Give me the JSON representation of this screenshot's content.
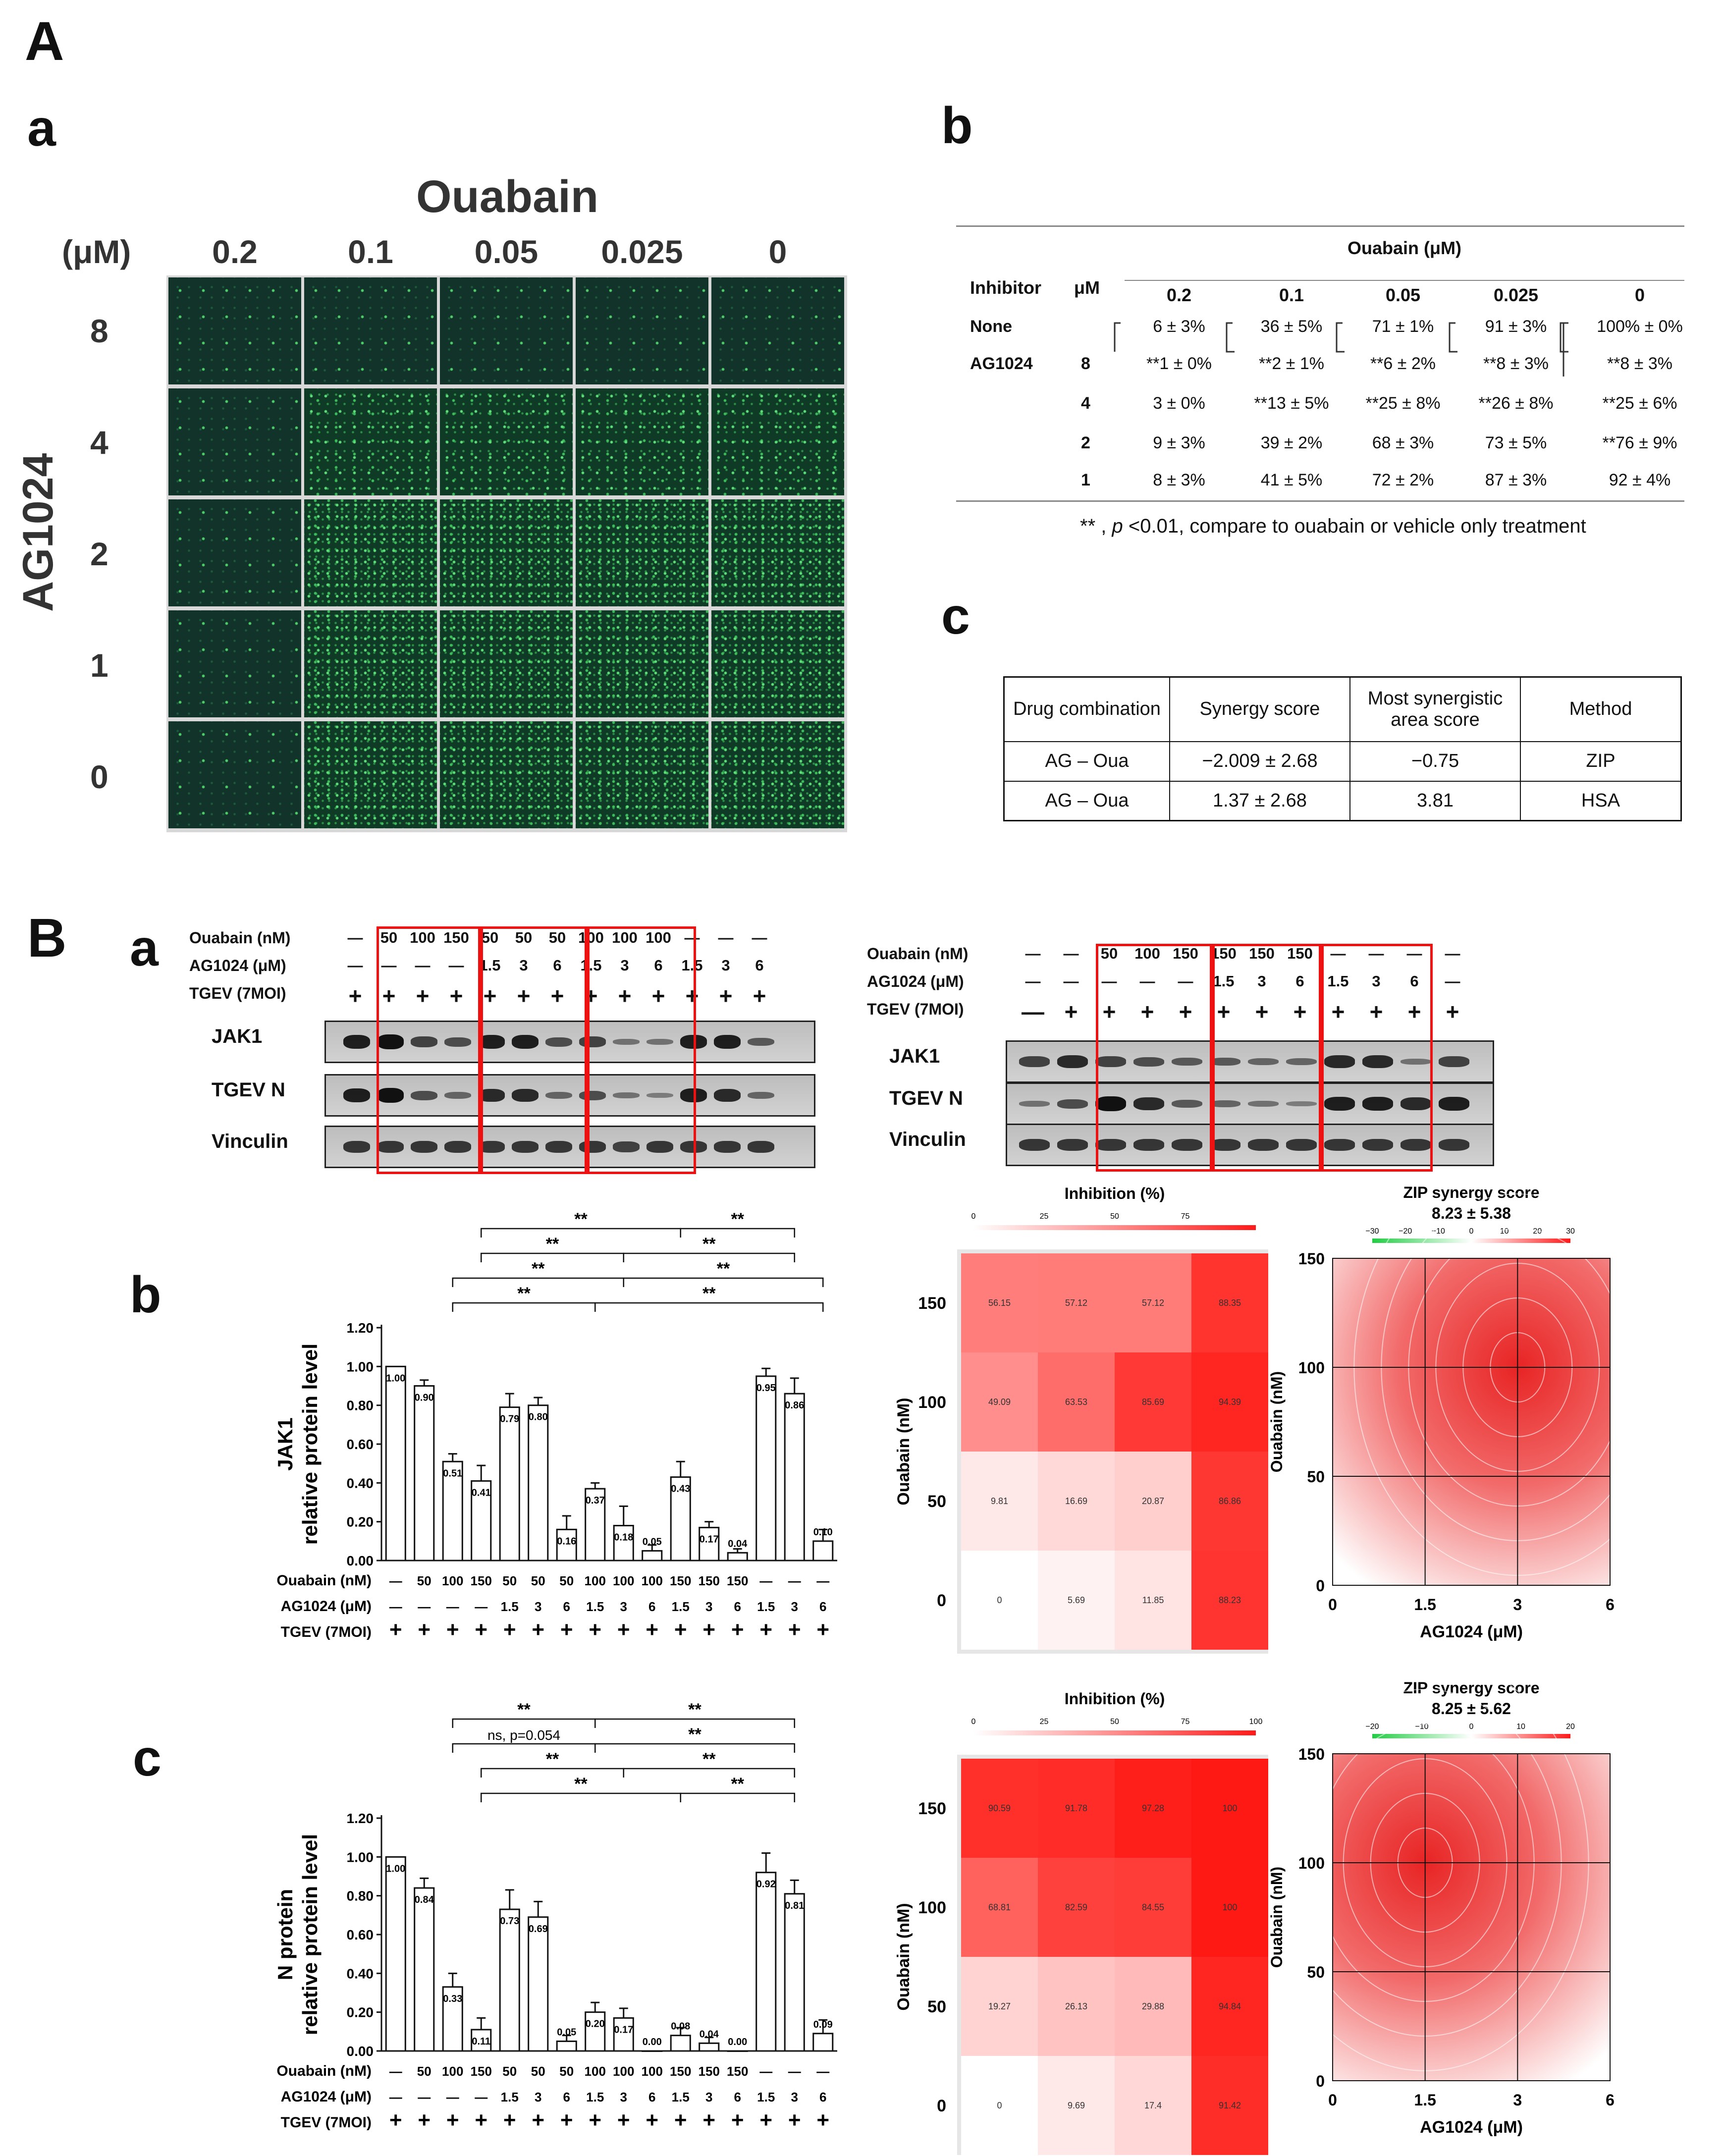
{
  "panels": {
    "A": "A",
    "A_a": "a",
    "A_b": "b",
    "A_c": "c",
    "B": "B",
    "B_a": "a",
    "B_b": "b",
    "B_c": "c"
  },
  "micrograph": {
    "title": "Ouabain",
    "unit": "(μM)",
    "ouabain_cols": [
      "0.2",
      "0.1",
      "0.05",
      "0.025",
      "0"
    ],
    "ag_label": "AG1024",
    "ag_rows": [
      "8",
      "4",
      "2",
      "1",
      "0"
    ]
  },
  "table_b": {
    "group_header": "Ouabain (μM)",
    "col_inhibitor": "Inhibitor",
    "col_um": "μM",
    "cols": [
      "0.2",
      "0.1",
      "0.05",
      "0.025",
      "0"
    ],
    "rows": [
      {
        "name": "None",
        "um": "",
        "vals": [
          "6 ± 3%",
          "36 ± 5%",
          "71 ± 1%",
          "91 ± 3%",
          "100% ± 0%"
        ]
      },
      {
        "name": "AG1024",
        "um": "8",
        "vals": [
          "**1 ± 0%",
          "**2 ± 1%",
          "**6 ± 2%",
          "**8 ± 3%",
          "**8 ± 3%"
        ]
      },
      {
        "name": "",
        "um": "4",
        "vals": [
          "3 ± 0%",
          "**13 ± 5%",
          "**25 ± 8%",
          "**26 ± 8%",
          "**25 ± 6%"
        ]
      },
      {
        "name": "",
        "um": "2",
        "vals": [
          "9 ± 3%",
          "39 ± 2%",
          "68 ± 3%",
          "73 ± 5%",
          "**76 ± 9%"
        ]
      },
      {
        "name": "",
        "um": "1",
        "vals": [
          "8 ± 3%",
          "41 ± 5%",
          "72 ± 2%",
          "87 ± 3%",
          "92 ± 4%"
        ]
      }
    ],
    "footnote_stars": "** ,",
    "footnote_p": "p",
    "footnote_rest": "<0.01, compare to ouabain or vehicle only treatment"
  },
  "table_c": {
    "headers": [
      "Drug combination",
      "Synergy score",
      "Most synergistic area score",
      "Method"
    ],
    "rows": [
      [
        "AG – Oua",
        "−2.009 ± 2.68",
        "−0.75",
        "ZIP"
      ],
      [
        "AG – Oua",
        "1.37 ± 2.68",
        "3.81",
        "HSA"
      ]
    ]
  },
  "blot_left": {
    "row_labels": [
      "Ouabain (nM)",
      "AG1024 (μM)",
      "TGEV (7MOI)"
    ],
    "ouabain": [
      "—",
      "50",
      "100",
      "150",
      "50",
      "50",
      "50",
      "100",
      "100",
      "100",
      "—",
      "—",
      "—"
    ],
    "ag1024": [
      "—",
      "—",
      "—",
      "—",
      "1.5",
      "3",
      "6",
      "1.5",
      "3",
      "6",
      "1.5",
      "3",
      "6"
    ],
    "tgev": [
      "+",
      "+",
      "+",
      "+",
      "+",
      "+",
      "+",
      "+",
      "+",
      "+",
      "+",
      "+",
      "+"
    ],
    "bands": [
      "JAK1",
      "TGEV N",
      "Vinculin"
    ]
  },
  "blot_right": {
    "row_labels": [
      "Ouabain (nM)",
      "AG1024 (μM)",
      "TGEV (7MOI)"
    ],
    "ouabain": [
      "—",
      "—",
      "50",
      "100",
      "150",
      "150",
      "150",
      "150",
      "—",
      "—",
      "—",
      "—"
    ],
    "ag1024": [
      "—",
      "—",
      "—",
      "—",
      "—",
      "1.5",
      "3",
      "6",
      "1.5",
      "3",
      "6",
      "—"
    ],
    "tgev": [
      "—",
      "+",
      "+",
      "+",
      "+",
      "+",
      "+",
      "+",
      "+",
      "+",
      "+",
      "+"
    ],
    "bands": [
      "JAK1",
      "TGEV N",
      "Vinculin"
    ]
  },
  "bar_x_rows": {
    "labels": [
      "Ouabain (nM)",
      "AG1024 (μM)",
      "TGEV (7MOI)"
    ],
    "ouabain": [
      "—",
      "50",
      "100",
      "150",
      "50",
      "50",
      "50",
      "100",
      "100",
      "100",
      "150",
      "150",
      "150",
      "—",
      "—",
      "—"
    ],
    "ag1024": [
      "—",
      "—",
      "—",
      "—",
      "1.5",
      "3",
      "6",
      "1.5",
      "3",
      "6",
      "1.5",
      "3",
      "6",
      "1.5",
      "3",
      "6"
    ],
    "tgev": [
      "+",
      "+",
      "+",
      "+",
      "+",
      "+",
      "+",
      "+",
      "+",
      "+",
      "+",
      "+",
      "+",
      "+",
      "+",
      "+"
    ]
  },
  "colors": {
    "bar_fill": "#ffffff",
    "box_red": "#e11111",
    "heat_max": "#ff1a1a",
    "heat_min": "#ffffff",
    "green_low": "#22cc44"
  },
  "chart_data": [
    {
      "type": "bar",
      "name": "JAK1",
      "ylabel_line1": "JAK1",
      "ylabel_line2": "relative protein level",
      "ylim": [
        0,
        1.2
      ],
      "yticks": [
        "0.00",
        "0.20",
        "0.40",
        "0.60",
        "0.80",
        "1.00",
        "1.20"
      ],
      "values": [
        1.0,
        0.9,
        0.51,
        0.41,
        0.79,
        0.8,
        0.16,
        0.37,
        0.18,
        0.05,
        0.43,
        0.17,
        0.04,
        0.95,
        0.86,
        0.1
      ],
      "value_labels": [
        "1.00",
        "0.90",
        "0.51",
        "0.41",
        "0.79",
        "0.80",
        "0.16",
        "0.37",
        "0.18",
        "0.05",
        "0.43",
        "0.17",
        "0.04",
        "0.95",
        "0.86",
        "0.10"
      ],
      "errors": [
        0,
        0.03,
        0.04,
        0.08,
        0.07,
        0.04,
        0.07,
        0.03,
        0.1,
        0.03,
        0.08,
        0.03,
        0.02,
        0.04,
        0.08,
        0.06
      ],
      "brackets": [
        {
          "from": 3,
          "to": 10,
          "label": "**",
          "level": 0
        },
        {
          "from": 10,
          "to": 14,
          "label": "**",
          "level": 0
        },
        {
          "from": 3,
          "to": 8,
          "label": "**",
          "level": 1
        },
        {
          "from": 8,
          "to": 14,
          "label": "**",
          "level": 1
        },
        {
          "from": 2,
          "to": 8,
          "label": "**",
          "level": 2
        },
        {
          "from": 8,
          "to": 15,
          "label": "**",
          "level": 2
        },
        {
          "from": 2,
          "to": 7,
          "label": "**",
          "level": 3
        },
        {
          "from": 7,
          "to": 15,
          "label": "**",
          "level": 3
        }
      ]
    },
    {
      "type": "bar",
      "name": "N protein",
      "ylabel_line1": "N protein",
      "ylabel_line2": "relative protein level",
      "ylim": [
        0,
        1.2
      ],
      "yticks": [
        "0.00",
        "0.20",
        "0.40",
        "0.60",
        "0.80",
        "1.00",
        "1.20"
      ],
      "values": [
        1.0,
        0.84,
        0.33,
        0.11,
        0.73,
        0.69,
        0.05,
        0.2,
        0.17,
        0.0,
        0.08,
        0.04,
        0.0,
        0.92,
        0.81,
        0.09
      ],
      "value_labels": [
        "1.00",
        "0.84",
        "0.33",
        "0.11",
        "0.73",
        "0.69",
        "0.05",
        "0.20",
        "0.17",
        "0.00",
        "0.08",
        "0.04",
        "0.00",
        "0.92",
        "0.81",
        "0.09"
      ],
      "errors": [
        0,
        0.05,
        0.07,
        0.06,
        0.1,
        0.08,
        0.03,
        0.05,
        0.05,
        0,
        0.04,
        0.03,
        0,
        0.1,
        0.07,
        0.07
      ],
      "brackets": [
        {
          "from": 2,
          "to": 7,
          "label": "**",
          "level": 0
        },
        {
          "from": 7,
          "to": 14,
          "label": "**",
          "level": 0
        },
        {
          "from": 2,
          "to": 7,
          "label": "ns, p=0.054",
          "level": 1
        },
        {
          "from": 7,
          "to": 14,
          "label": "**",
          "level": 1
        },
        {
          "from": 3,
          "to": 8,
          "label": "**",
          "level": 2
        },
        {
          "from": 8,
          "to": 14,
          "label": "**",
          "level": 2
        },
        {
          "from": 3,
          "to": 10,
          "label": "**",
          "level": 3
        },
        {
          "from": 10,
          "to": 14,
          "label": "**",
          "level": 3
        }
      ]
    },
    {
      "type": "heatmap",
      "name": "Inhibition JAK1",
      "title": "Inhibition (%)",
      "scale_ticks": [
        "0",
        "25",
        "50",
        "75"
      ],
      "xlabel": "AG1024 (μM)",
      "ylabel": "Ouabain (nM)",
      "x": [
        "0",
        "1.5",
        "3",
        "6"
      ],
      "y": [
        "150",
        "100",
        "50",
        "0"
      ],
      "values": [
        [
          56.15,
          57.12,
          57.12,
          88.35
        ],
        [
          49.09,
          63.53,
          85.69,
          94.39
        ],
        [
          9.81,
          16.69,
          20.87,
          86.86
        ],
        [
          0,
          5.69,
          11.85,
          88.23
        ]
      ],
      "value_labels": [
        [
          "56.15",
          "57.12",
          "57.12",
          "88.35"
        ],
        [
          "49.09",
          "63.53",
          "85.69",
          "94.39"
        ],
        [
          "9.81",
          "16.69",
          "20.87",
          "86.86"
        ],
        [
          "0",
          "5.69",
          "11.85",
          "88.23"
        ]
      ]
    },
    {
      "type": "heatmap",
      "name": "Inhibition N",
      "title": "Inhibition (%)",
      "scale_ticks": [
        "0",
        "25",
        "50",
        "75",
        "100"
      ],
      "xlabel": "AG1024 (μM)",
      "ylabel": "Ouabain (nM)",
      "x": [
        "0",
        "1.5",
        "3",
        "6"
      ],
      "y": [
        "150",
        "100",
        "50",
        "0"
      ],
      "values": [
        [
          90.59,
          91.78,
          97.28,
          100
        ],
        [
          68.81,
          82.59,
          84.55,
          100
        ],
        [
          19.27,
          26.13,
          29.88,
          94.84
        ],
        [
          0,
          9.69,
          17.4,
          91.42
        ]
      ],
      "value_labels": [
        [
          "90.59",
          "91.78",
          "97.28",
          "100"
        ],
        [
          "68.81",
          "82.59",
          "84.55",
          "100"
        ],
        [
          "19.27",
          "26.13",
          "29.88",
          "94.84"
        ],
        [
          "0",
          "9.69",
          "17.4",
          "91.42"
        ]
      ]
    },
    {
      "type": "heatmap",
      "name": "ZIP synergy JAK1",
      "title": "ZIP synergy score",
      "score": "8.23 ± 5.38",
      "scale_ticks": [
        "−30",
        "−20",
        "−10",
        "0",
        "10",
        "20",
        "30"
      ],
      "xlabel": "AG1024 (μM)",
      "ylabel": "Ouabain (nM)",
      "x": [
        "0",
        "1.5",
        "3",
        "6"
      ],
      "y": [
        "150",
        "100",
        "50",
        "0"
      ],
      "peak": {
        "x": 3,
        "y": 100
      }
    },
    {
      "type": "heatmap",
      "name": "ZIP synergy N",
      "title": "ZIP synergy score",
      "score": "8.25 ± 5.62",
      "scale_ticks": [
        "−20",
        "−10",
        "0",
        "10",
        "20"
      ],
      "xlabel": "AG1024 (μM)",
      "ylabel": "Ouabain (nM)",
      "x": [
        "0",
        "1.5",
        "3",
        "6"
      ],
      "y": [
        "150",
        "100",
        "50",
        "0"
      ],
      "peak": {
        "x": 1.5,
        "y": 100
      }
    }
  ]
}
